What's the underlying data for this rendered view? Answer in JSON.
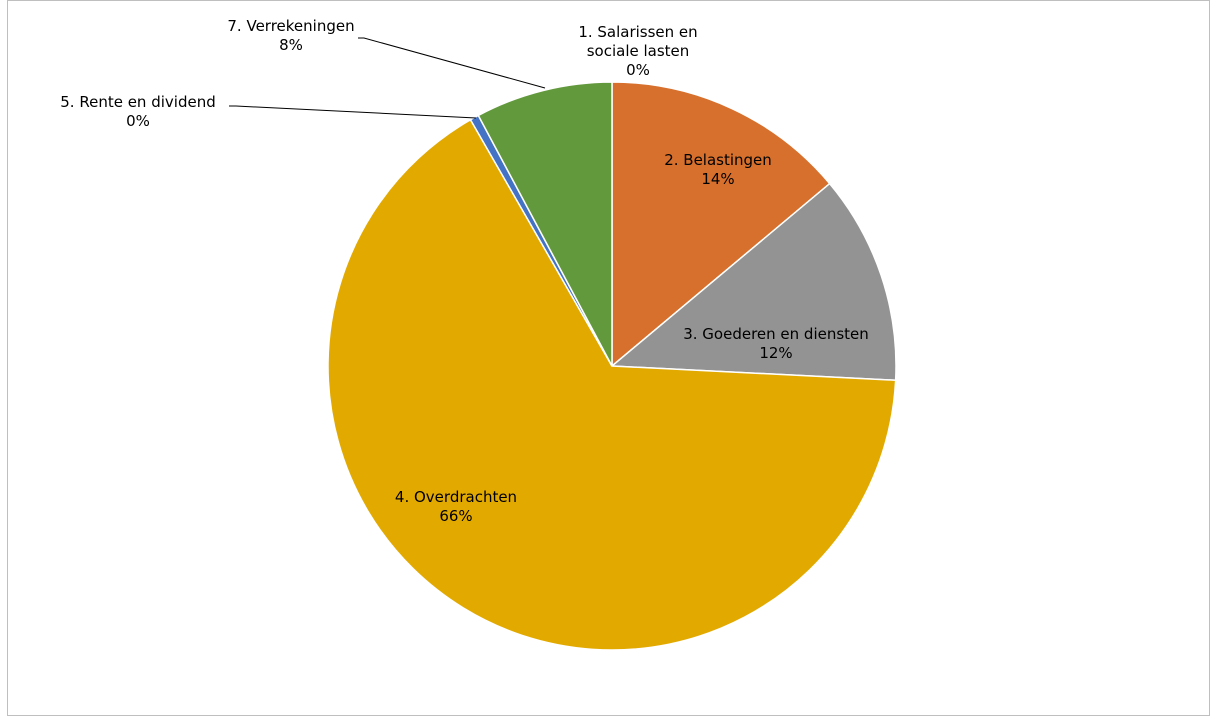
{
  "chart_data": {
    "type": "pie",
    "title": "",
    "legend": "none",
    "slices": [
      {
        "label_lines": [
          "1. Salarissen en",
          "sociale lasten"
        ],
        "percent_label": "0%",
        "value": 0.0,
        "color": "#5b9bd5"
      },
      {
        "label_lines": [
          "2. Belastingen"
        ],
        "percent_label": "14%",
        "value": 13.9,
        "color": "#d6702c"
      },
      {
        "label_lines": [
          "3. Goederen en diensten"
        ],
        "percent_label": "12%",
        "value": 11.9,
        "color": "#939393"
      },
      {
        "label_lines": [
          "4. Overdrachten"
        ],
        "percent_label": "66%",
        "value": 65.9,
        "color": "#e2aa00"
      },
      {
        "label_lines": [
          "5. Rente en dividend"
        ],
        "percent_label": "0%",
        "value": 0.5,
        "color": "#4472c4"
      },
      {
        "label_lines": [
          "7. Verrekeningen"
        ],
        "percent_label": "8%",
        "value": 7.8,
        "color": "#63993d"
      }
    ]
  }
}
